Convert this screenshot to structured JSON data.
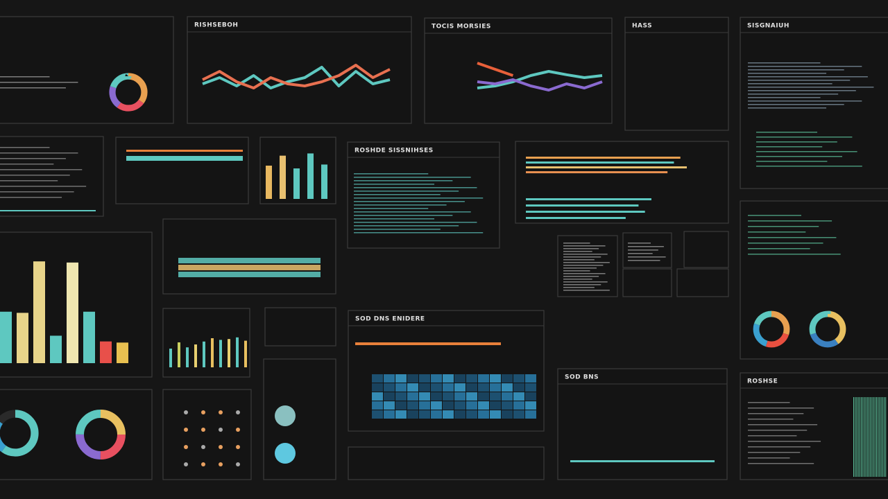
{
  "titles": [
    "RISHSEBOH",
    "TOCIS MORSIES",
    "HASS",
    "SISGNAIUH",
    "ROSHDE SISSNIHSES",
    "SOD DNS ENIDERE",
    "SOD BNS",
    "ROSHSE"
  ],
  "main_bars": {
    "values": [
      45,
      44,
      89,
      24,
      88,
      45,
      19,
      18
    ],
    "colors": [
      "#5ec8c0",
      "#e8d48a",
      "#e8d48a",
      "#5ec8c0",
      "#efe6b0",
      "#5ec8c0",
      "#e8504a",
      "#e8c050"
    ]
  },
  "mini_bars": {
    "values": [
      60,
      78,
      55,
      82,
      62
    ],
    "colors": [
      "#e8b860",
      "#e8c070",
      "#5ec8c0",
      "#5ec8c0",
      "#5ec8c0"
    ]
  },
  "spark_bars": {
    "values": [
      45,
      60,
      48,
      55,
      62,
      70,
      66,
      68,
      72,
      64
    ],
    "colors": [
      "#5ec8c0",
      "#c8d060",
      "#5ec8c0",
      "#e8d070",
      "#5ec8c0",
      "#e8c060",
      "#5ec8c0",
      "#e8d070",
      "#5ec8c0",
      "#e8c060"
    ]
  },
  "hbars": {
    "values": [
      96,
      92,
      100,
      88,
      78,
      70,
      74,
      62
    ],
    "colors": [
      "#e8a050",
      "#5ec8c0",
      "#e8c070",
      "#e89050",
      "#5ec8c0",
      "#5ec8c0",
      "#5ec8c0",
      "#5ec8c0"
    ]
  },
  "line_a": {
    "series": [
      {
        "color": "#5ec8c0",
        "values": [
          40,
          55,
          35,
          60,
          30,
          45,
          55,
          80,
          35,
          70,
          40,
          50
        ]
      },
      {
        "color": "#e87050",
        "values": [
          50,
          70,
          45,
          30,
          55,
          40,
          35,
          45,
          60,
          85,
          55,
          75
        ]
      }
    ]
  },
  "line_b": {
    "series": [
      {
        "color": "#e8603a",
        "values": [
          90,
          75,
          60,
          null,
          null,
          null,
          null,
          null
        ]
      },
      {
        "color": "#5ec8c0",
        "values": [
          30,
          35,
          45,
          60,
          70,
          62,
          55,
          60
        ]
      },
      {
        "color": "#8a6ad0",
        "values": [
          45,
          40,
          50,
          35,
          25,
          40,
          30,
          45
        ]
      }
    ]
  },
  "donuts": [
    {
      "values": [
        35,
        25,
        20,
        20
      ],
      "colors": [
        "#e8a050",
        "#e85060",
        "#8a6ad0",
        "#5ec8c0"
      ]
    },
    {
      "values": [
        30,
        25,
        25,
        20
      ],
      "colors": [
        "#e8a050",
        "#e85040",
        "#3aa0d0",
        "#5ec8c0"
      ]
    },
    {
      "values": [
        40,
        30,
        30
      ],
      "colors": [
        "#e8c060",
        "#3a80c0",
        "#5ec8c0"
      ]
    },
    {
      "values": [
        60,
        25,
        15
      ],
      "colors": [
        "#5ec8c0",
        "#3aa0d0",
        "#2a2a2a"
      ]
    },
    {
      "values": [
        25,
        25,
        25,
        25
      ],
      "colors": [
        "#e8c060",
        "#e85060",
        "#8a6ad0",
        "#5ec8c0"
      ]
    }
  ]
}
